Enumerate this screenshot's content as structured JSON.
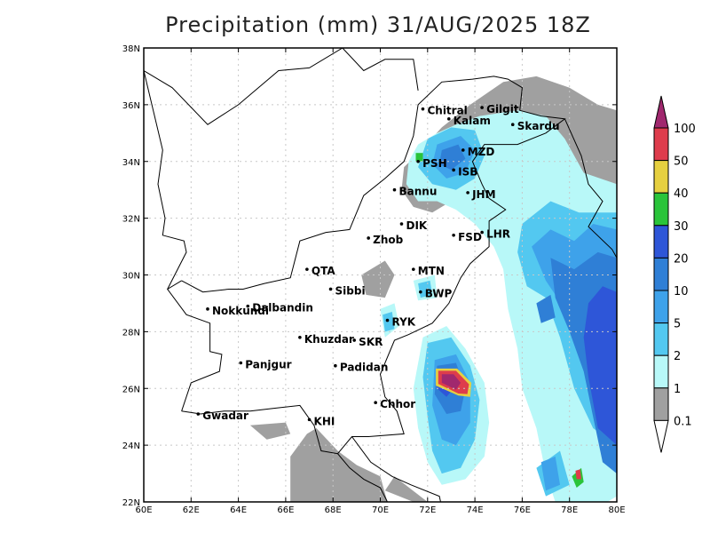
{
  "title": "Precipitation (mm) 31/AUG/2025 18Z",
  "x_ticks": [
    "60E",
    "62E",
    "64E",
    "66E",
    "68E",
    "70E",
    "72E",
    "74E",
    "76E",
    "78E",
    "80E"
  ],
  "y_ticks": [
    "22N",
    "24N",
    "26N",
    "28N",
    "30N",
    "32N",
    "34N",
    "36N",
    "38N"
  ],
  "cities": [
    {
      "name": "Chitral",
      "lon": 71.8,
      "lat": 35.85
    },
    {
      "name": "Gilgit",
      "lon": 74.3,
      "lat": 35.9
    },
    {
      "name": "Kalam",
      "lon": 72.9,
      "lat": 35.5
    },
    {
      "name": "Skardu",
      "lon": 75.6,
      "lat": 35.3
    },
    {
      "name": "MZD",
      "lon": 73.5,
      "lat": 34.4
    },
    {
      "name": "PSH",
      "lon": 71.6,
      "lat": 34.0
    },
    {
      "name": "ISB",
      "lon": 73.1,
      "lat": 33.7
    },
    {
      "name": "JHM",
      "lon": 73.7,
      "lat": 32.9
    },
    {
      "name": "Bannu",
      "lon": 70.6,
      "lat": 33.0
    },
    {
      "name": "DIK",
      "lon": 70.9,
      "lat": 31.8
    },
    {
      "name": "FSD",
      "lon": 73.1,
      "lat": 31.4
    },
    {
      "name": "LHR",
      "lon": 74.3,
      "lat": 31.5
    },
    {
      "name": "Zhob",
      "lon": 69.5,
      "lat": 31.3
    },
    {
      "name": "QTA",
      "lon": 66.9,
      "lat": 30.2
    },
    {
      "name": "MTN",
      "lon": 71.4,
      "lat": 30.2
    },
    {
      "name": "Sibbi",
      "lon": 67.9,
      "lat": 29.5
    },
    {
      "name": "BWP",
      "lon": 71.7,
      "lat": 29.4
    },
    {
      "name": "Dalbandin",
      "lon": 64.4,
      "lat": 28.9
    },
    {
      "name": "Nokkundi",
      "lon": 62.7,
      "lat": 28.8
    },
    {
      "name": "RYK",
      "lon": 70.3,
      "lat": 28.4
    },
    {
      "name": "Khuzdar",
      "lon": 66.6,
      "lat": 27.8
    },
    {
      "name": "SKR",
      "lon": 68.9,
      "lat": 27.7
    },
    {
      "name": "Padidan",
      "lon": 68.1,
      "lat": 26.8
    },
    {
      "name": "Panjgur",
      "lon": 64.1,
      "lat": 26.9
    },
    {
      "name": "Chhor",
      "lon": 69.8,
      "lat": 25.5
    },
    {
      "name": "Gwadar",
      "lon": 62.3,
      "lat": 25.1
    },
    {
      "name": "KHI",
      "lon": 67.0,
      "lat": 24.9
    }
  ],
  "legend": {
    "labels": [
      "100",
      "50",
      "40",
      "30",
      "20",
      "10",
      "5",
      "2",
      "1",
      "0.1"
    ],
    "colors": [
      "#de3c4c",
      "#e6d040",
      "#2ac43a",
      "#2e56d8",
      "#2f7fd6",
      "#3ea2ea",
      "#53c8f0",
      "#b8f8f8",
      "#a0a0a0"
    ],
    "over_color": "#a0286e",
    "under_color": "#ffffff"
  },
  "colors": {
    "frame": "#000000",
    "grid": "#c8c8c8",
    "land": "#ffffff",
    "dry_gray": "#a0a0a0",
    "light_cyan": "#b8f8f8",
    "cyan": "#53c8f0",
    "blue1": "#3ea2ea",
    "blue2": "#2f7fd6",
    "blue3": "#2e56d8",
    "green": "#2ac43a",
    "yellow": "#e6d040",
    "red": "#de3c4c",
    "magenta": "#a0286e"
  },
  "precip_regions": [
    {
      "label": "northern-mountains",
      "level": "cyan"
    },
    {
      "label": "punjab-kashmir",
      "level": "blue2"
    },
    {
      "label": "sindh-tharparkar",
      "level": "blue3"
    },
    {
      "label": "indian-rajasthan-gujarat",
      "level": "blue3"
    },
    {
      "label": "arabian-sea-dry",
      "level": "dry_gray"
    }
  ]
}
